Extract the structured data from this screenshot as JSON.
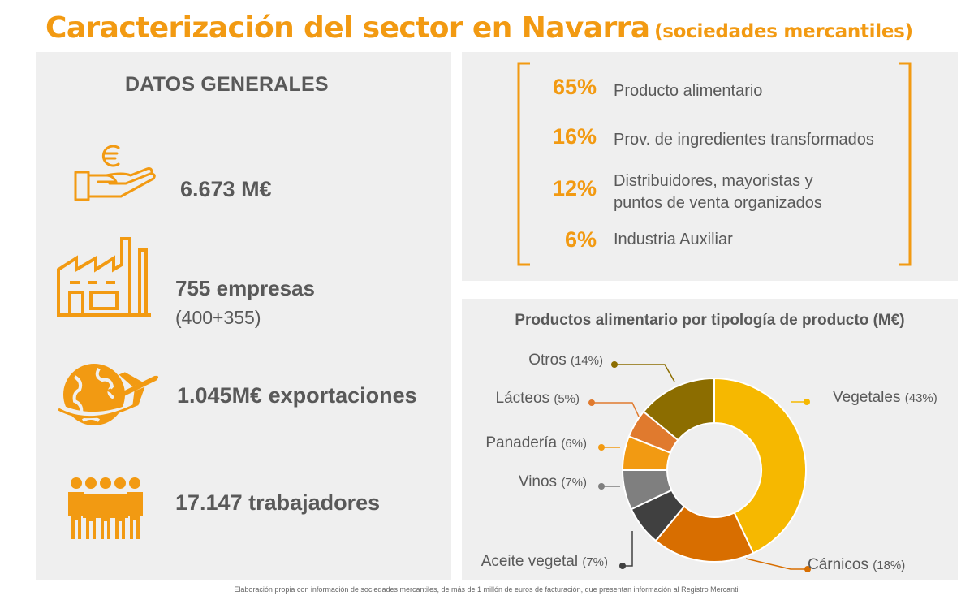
{
  "title": {
    "main": "Caracterización del sector en Navarra",
    "sub": "(sociedades mercantiles)"
  },
  "datos_generales": {
    "heading": "DATOS GENERALES",
    "stats": [
      {
        "icon": "euro-hand-icon",
        "value": "6.673 M€"
      },
      {
        "icon": "factory-icon",
        "value": "755 empresas",
        "detail": "(400+355)"
      },
      {
        "icon": "globe-airplane-icon",
        "value": "1.045M€ exportaciones"
      },
      {
        "icon": "people-group-icon",
        "value": "17.147 trabajadores"
      }
    ]
  },
  "breakdown": [
    {
      "pct": "65%",
      "label": "Producto alimentario"
    },
    {
      "pct": "16%",
      "label": "Prov. de ingredientes transformados"
    },
    {
      "pct": "12%",
      "label_line1": "Distribuidores, mayoristas y",
      "label_line2": "puntos de venta organizados"
    },
    {
      "pct": "6%",
      "label": "Industria Auxiliar"
    }
  ],
  "chart_data": {
    "type": "pie",
    "title": "Productos alimentario por tipología de producto (M€)",
    "categories": [
      "Vegetales",
      "Cárnicos",
      "Aceite vegetal",
      "Vinos",
      "Panadería",
      "Lácteos",
      "Otros"
    ],
    "values": [
      43,
      18,
      7,
      7,
      6,
      5,
      14
    ],
    "value_labels": [
      "(43%)",
      "(18%)",
      "(7%)",
      "(7%)",
      "(6%)",
      "(5%)",
      "(14%)"
    ],
    "colors": [
      "#f6b800",
      "#d86e00",
      "#404040",
      "#7f7f7f",
      "#f29a12",
      "#e07a2e",
      "#8c6d00"
    ],
    "donut": true,
    "grid": false
  },
  "footnote": "Elaboración propia con información de sociedades mercantiles, de más de 1 millón de euros de facturación, que presentan información al Registro Mercantil",
  "colors": {
    "accent": "#f29a12",
    "panel": "#efefef",
    "text": "#595959"
  }
}
